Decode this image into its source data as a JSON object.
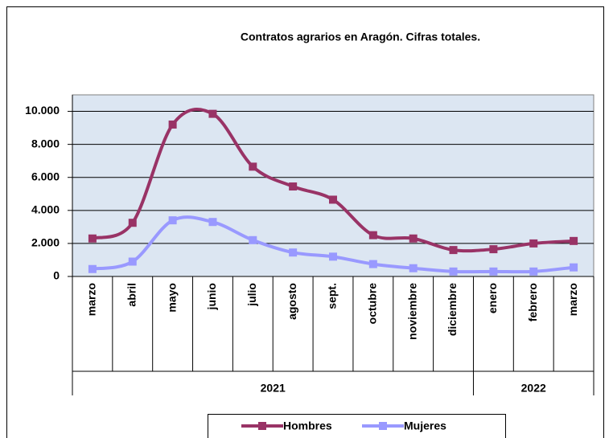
{
  "chart_data": {
    "type": "line",
    "title": "Contratos agrarios en  Aragón. Cifras totales.",
    "categories": [
      "marzo",
      "abril",
      "mayo",
      "junio",
      "julio",
      "agosto",
      "sept.",
      "octubre",
      "noviembre",
      "diciembre",
      "enero",
      "febrero",
      "marzo"
    ],
    "groups": [
      {
        "name": "2021",
        "size": 10
      },
      {
        "name": "2022",
        "size": 3
      }
    ],
    "series": [
      {
        "name": "Hombres",
        "color": "#993366",
        "values": [
          2300,
          3250,
          9200,
          9850,
          6650,
          5450,
          4650,
          2500,
          2300,
          1600,
          1650,
          2000,
          2150
        ]
      },
      {
        "name": "Mujeres",
        "color": "#9999ff",
        "values": [
          450,
          900,
          3400,
          3300,
          2200,
          1450,
          1200,
          750,
          500,
          300,
          300,
          300,
          550
        ]
      }
    ],
    "ylim": [
      0,
      11000
    ],
    "yticks": [
      {
        "value": 0,
        "label": "0"
      },
      {
        "value": 2000,
        "label": "2.000"
      },
      {
        "value": 4000,
        "label": "4.000"
      },
      {
        "value": 6000,
        "label": "6.000"
      },
      {
        "value": 8000,
        "label": "8.000"
      },
      {
        "value": 10000,
        "label": "10.000"
      }
    ],
    "grid": true,
    "legend": "bottom"
  }
}
